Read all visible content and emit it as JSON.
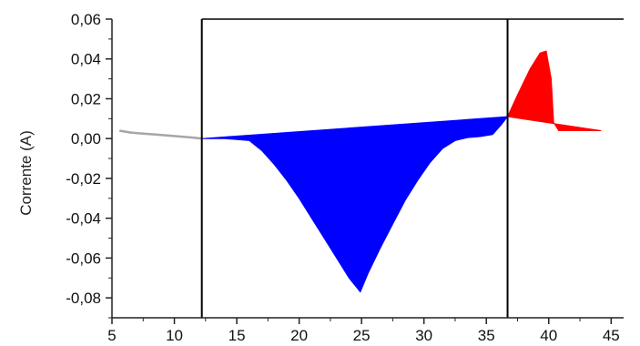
{
  "chart_data": {
    "type": "area",
    "title": "",
    "xlabel": "",
    "ylabel": "Corrente (A)",
    "xlim": [
      5,
      46
    ],
    "ylim": [
      -0.09,
      0.06
    ],
    "x_ticks": [
      5,
      10,
      15,
      20,
      25,
      30,
      35,
      40,
      45
    ],
    "x_tick_labels": [
      "5",
      "10",
      "15",
      "20",
      "25",
      "30",
      "35",
      "40",
      "45"
    ],
    "y_ticks": [
      0.06,
      0.04,
      0.02,
      0.0,
      -0.02,
      -0.04,
      -0.06,
      -0.08
    ],
    "y_tick_labels": [
      "0,06",
      "0,04",
      "0,02",
      "0,00",
      "-0,02",
      "-0,04",
      "-0,06",
      "-0,08"
    ],
    "grid": false,
    "vertical_markers": [
      12.2,
      36.7
    ],
    "series": [
      {
        "color": "#a6a6a6",
        "x": [
          5.6,
          6.5,
          7.5,
          8.5,
          9.5,
          10.5,
          11.5,
          12.2
        ],
        "y": [
          0.004,
          0.003,
          0.0025,
          0.002,
          0.0015,
          0.001,
          0.0005,
          0.0
        ]
      },
      {
        "color": "#0000ff",
        "curve_x": [
          12.2,
          14,
          16,
          17,
          18,
          19,
          20,
          21,
          22,
          23,
          24,
          24.9,
          25.5,
          26.5,
          27.5,
          28.5,
          29.5,
          30.5,
          31.5,
          32.5,
          33.5,
          34.5,
          35.5,
          36.2,
          36.7
        ],
        "curve_y": [
          0.0,
          0.0,
          -0.001,
          -0.006,
          -0.013,
          -0.021,
          -0.03,
          -0.04,
          -0.05,
          -0.06,
          -0.07,
          -0.077,
          -0.068,
          -0.055,
          -0.043,
          -0.031,
          -0.021,
          -0.012,
          -0.005,
          -0.001,
          0.0005,
          0.001,
          0.002,
          0.007,
          0.011
        ],
        "baseline_x": [
          12.2,
          36.7
        ],
        "baseline_y": [
          0.0,
          0.011
        ]
      },
      {
        "color": "#ff0000",
        "curve_x": [
          36.7,
          37.5,
          38.5,
          39.3,
          39.8,
          40.2,
          40.4,
          40.8,
          41.5,
          42.5,
          43.5,
          44.2
        ],
        "curve_y": [
          0.011,
          0.022,
          0.035,
          0.043,
          0.044,
          0.03,
          0.008,
          0.004,
          0.004,
          0.004,
          0.004,
          0.004
        ],
        "baseline_x": [
          36.7,
          44.2
        ],
        "baseline_y": [
          0.011,
          0.004
        ]
      }
    ]
  }
}
